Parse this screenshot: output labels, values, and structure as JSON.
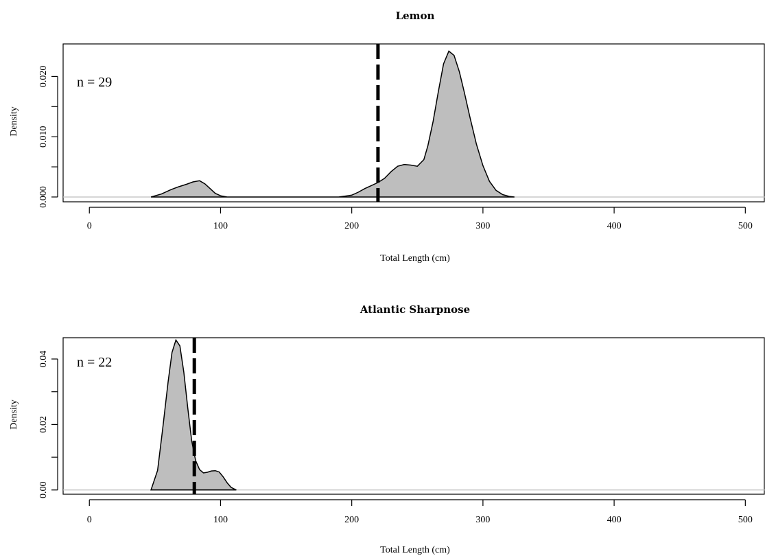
{
  "chart_data": [
    {
      "type": "area",
      "title": "Lemon",
      "xlabel": "Total Length (cm)",
      "ylabel": "Density",
      "annotation": "n = 29",
      "xlim": [
        -20,
        515
      ],
      "ylim": [
        -0.0008,
        0.0254
      ],
      "xticks": [
        0,
        100,
        200,
        300,
        400,
        500
      ],
      "xtick_labels": [
        "0",
        "100",
        "200",
        "300",
        "400",
        "500"
      ],
      "yticks": [
        0.0,
        0.005,
        0.01,
        0.015,
        0.02
      ],
      "ytick_labels": [
        "0.000",
        "",
        "0.010",
        "",
        "0.020"
      ],
      "vline": 220,
      "baseline": 0,
      "series": [
        {
          "x": [
            47,
            55,
            62,
            68,
            74,
            79,
            84,
            88,
            92,
            96,
            100,
            105,
            150,
            190,
            200,
            205,
            210,
            215,
            220,
            225,
            230,
            235,
            240,
            245,
            250,
            255,
            258,
            262,
            266,
            270,
            274,
            278,
            282,
            286,
            290,
            295,
            300,
            305,
            310,
            315,
            320,
            324
          ],
          "values": [
            0.0,
            0.0005,
            0.0012,
            0.0017,
            0.0021,
            0.0025,
            0.0027,
            0.0022,
            0.0014,
            0.0006,
            0.0002,
            0.0,
            0.0,
            0.0,
            0.0003,
            0.0008,
            0.0014,
            0.0019,
            0.0024,
            0.0031,
            0.0042,
            0.0051,
            0.0054,
            0.0053,
            0.0051,
            0.0062,
            0.0085,
            0.0125,
            0.0175,
            0.0221,
            0.0242,
            0.0235,
            0.0208,
            0.0172,
            0.0133,
            0.0088,
            0.0052,
            0.0026,
            0.0011,
            0.0004,
            0.0001,
            0.0
          ]
        }
      ]
    },
    {
      "type": "area",
      "title": "Atlantic Sharpnose",
      "xlabel": "Total Length (cm)",
      "ylabel": "Density",
      "annotation": "n = 22",
      "xlim": [
        -20,
        515
      ],
      "ylim": [
        -0.0013,
        0.0465
      ],
      "xticks": [
        0,
        100,
        200,
        300,
        400,
        500
      ],
      "xtick_labels": [
        "0",
        "100",
        "200",
        "300",
        "400",
        "500"
      ],
      "yticks": [
        0.0,
        0.01,
        0.02,
        0.03,
        0.04
      ],
      "ytick_labels": [
        "0.00",
        "",
        "0.02",
        "",
        "0.04"
      ],
      "vline": 80,
      "baseline": 0,
      "series": [
        {
          "x": [
            47,
            52,
            56,
            60,
            63,
            66,
            69,
            72,
            75,
            78,
            81,
            84,
            87,
            90,
            93,
            96,
            99,
            102,
            105,
            108,
            112
          ],
          "values": [
            0.0,
            0.006,
            0.019,
            0.033,
            0.042,
            0.0458,
            0.044,
            0.036,
            0.025,
            0.015,
            0.009,
            0.0062,
            0.0052,
            0.0054,
            0.0058,
            0.0059,
            0.0055,
            0.004,
            0.0022,
            0.0008,
            0.0
          ]
        }
      ]
    }
  ]
}
